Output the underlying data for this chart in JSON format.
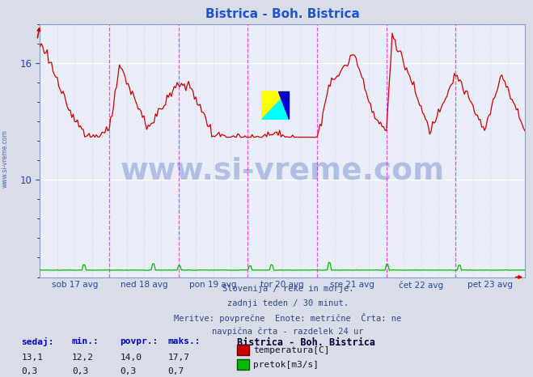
{
  "title": "Bistrica - Boh. Bistrica",
  "title_color": "#2255cc",
  "bg_color": "#d8dde8",
  "plot_bg_color": "#eaeef8",
  "grid_major_color": "#ffffff",
  "grid_minor_color": "#dde4f0",
  "xlabel_color": "#2244aa",
  "ylabel_color": "#2244aa",
  "temp_color": "#cc0000",
  "flow_color": "#00bb00",
  "vline_color_day": "#ff44ff",
  "vline_color_other": "#cc88cc",
  "x_tick_labels": [
    "sob 17 avg",
    "ned 18 avg",
    "pon 19 avg",
    "tor 20 avg",
    "sre 21 avg",
    "čet 22 avg",
    "pet 23 avg"
  ],
  "y_ticks": [
    10,
    16
  ],
  "ylim_lo": 5.0,
  "ylim_hi": 18.0,
  "xlim_lo": 0,
  "xlim_hi": 336,
  "n_points": 337,
  "temp_min": 12.2,
  "temp_max": 17.7,
  "temp_avg": 14.0,
  "temp_cur": 13.1,
  "flow_min": 0.3,
  "flow_max": 0.7,
  "flow_avg": 0.3,
  "flow_cur": 0.3,
  "watermark": "www.si-vreme.com",
  "watermark_color": "#3355bb",
  "subtitle_lines": [
    "Slovenija / reke in morje.",
    "zadnji teden / 30 minut.",
    "Meritve: povprečne  Enote: metrične  Črta: ne",
    "navpična črta - razdelek 24 ur"
  ],
  "legend_title": "Bistrica - Boh. Bistrica",
  "legend_labels": [
    "temperatura[C]",
    "pretok[m3/s]"
  ],
  "legend_colors": [
    "#cc0000",
    "#00bb00"
  ],
  "table_headers": [
    "sedaj:",
    "min.:",
    "povpr.:",
    "maks.:"
  ],
  "table_row1": [
    "13,1",
    "12,2",
    "14,0",
    "17,7"
  ],
  "table_row2": [
    "0,3",
    "0,3",
    "0,3",
    "0,7"
  ],
  "logo_yellow": "#ffff00",
  "logo_cyan": "#00ffff",
  "logo_blue": "#0000cc"
}
